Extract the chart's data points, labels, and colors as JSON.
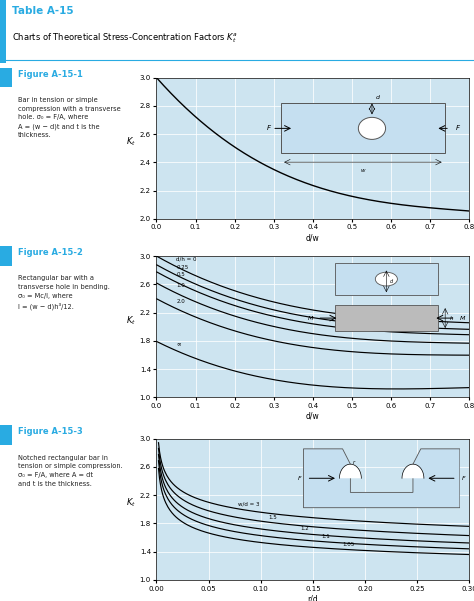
{
  "title": "Table A-15",
  "subtitle": "Charts of Theoretical Stress-Concentration Factors $K_t^a$",
  "header_color": "#29abe2",
  "plot_bg": "#cde4f0",
  "fig1": {
    "label": "Figure A-15-1",
    "desc": "Bar in tension or simple\ncompression with a transverse\nhole. σ₀ = F/A, where\nA = (w − d)t and t is the\nthickness.",
    "xlabel": "d/w",
    "ylabel": "$K_t$",
    "xlim": [
      0,
      0.8
    ],
    "ylim": [
      2.0,
      3.0
    ],
    "xticks": [
      0,
      0.1,
      0.2,
      0.3,
      0.4,
      0.5,
      0.6,
      0.7,
      0.8
    ],
    "yticks": [
      2.0,
      2.2,
      2.4,
      2.6,
      2.8,
      3.0
    ]
  },
  "fig2": {
    "label": "Figure A-15-2",
    "desc": "Rectangular bar with a\ntransverse hole in bending.\nσ₀ = Mc/I, where\nI = (w − d)h³/12.",
    "xlabel": "d/w",
    "ylabel": "$K_t$",
    "xlim": [
      0,
      0.8
    ],
    "ylim": [
      1.0,
      3.0
    ],
    "xticks": [
      0,
      0.1,
      0.2,
      0.3,
      0.4,
      0.5,
      0.6,
      0.7,
      0.8
    ],
    "yticks": [
      1.0,
      1.4,
      1.8,
      2.2,
      2.6,
      3.0
    ],
    "curve_labels": [
      "d/h = 0",
      "0.25",
      "0.5",
      "1.0",
      "2.0",
      "∞"
    ],
    "label_dw": [
      0.055,
      0.055,
      0.055,
      0.055,
      0.055,
      0.055
    ]
  },
  "fig3": {
    "label": "Figure A-15-3",
    "desc": "Notched rectangular bar in\ntension or simple compression.\nσ₀ = F/A, where A = dt\nand t is the thickness.",
    "xlabel": "r/d",
    "ylabel": "$K_t$",
    "xlim": [
      0,
      0.3
    ],
    "ylim": [
      1.0,
      3.0
    ],
    "xticks": [
      0,
      0.05,
      0.1,
      0.15,
      0.2,
      0.25,
      0.3
    ],
    "yticks": [
      1.0,
      1.4,
      1.8,
      2.2,
      2.6,
      3.0
    ],
    "curve_labels": [
      "w/d = 3",
      "1.5",
      "1.2",
      "1.1",
      "1.05"
    ],
    "label_rd": [
      0.075,
      0.105,
      0.135,
      0.155,
      0.175
    ]
  }
}
